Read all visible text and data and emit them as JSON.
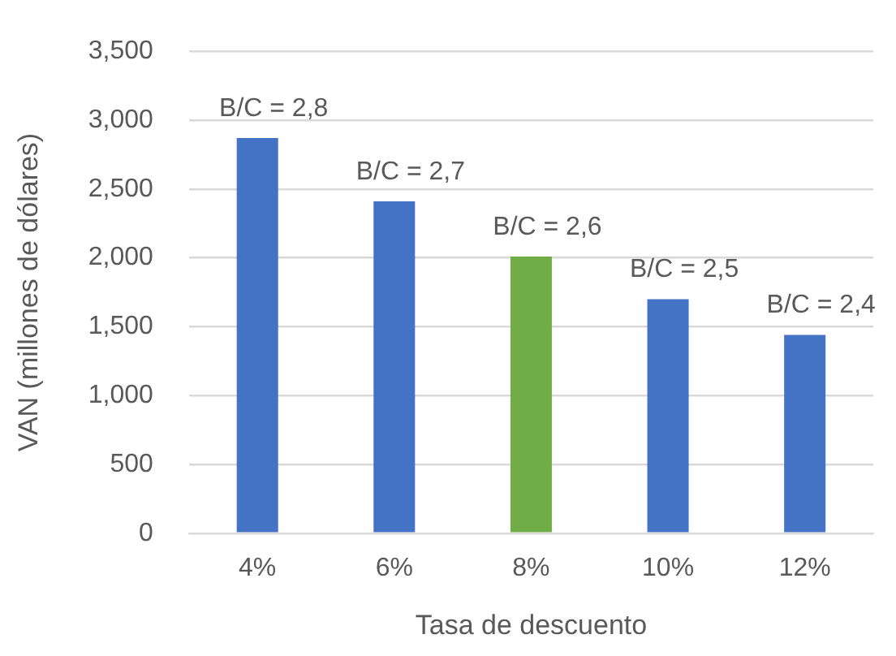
{
  "chart_data": {
    "type": "bar",
    "categories": [
      "4%",
      "6%",
      "8%",
      "10%",
      "12%"
    ],
    "values": [
      2870,
      2410,
      2010,
      1700,
      1440
    ],
    "colors": [
      "#4472c4",
      "#4472c4",
      "#70ad47",
      "#4472c4",
      "#4472c4"
    ],
    "xlabel": "Tasa de descuento",
    "ylabel": "VAN (millones de dólares)",
    "ylim": [
      0,
      3500
    ],
    "yticks": [
      0,
      500,
      {
        "value": 1000,
        "label": "1,000"
      },
      {
        "value": 1500,
        "label": "1,500"
      },
      {
        "value": 2000,
        "label": "2,000"
      },
      {
        "value": 2500,
        "label": "2,500"
      },
      {
        "value": 3000,
        "label": "3,000"
      },
      {
        "value": 3500,
        "label": "3,500"
      }
    ],
    "grid": "y",
    "annotations": [
      {
        "text": "B/C = 2,8",
        "x": "4%",
        "y": 2870
      },
      {
        "text": "B/C = 2,7",
        "x": "6%",
        "y": 2410
      },
      {
        "text": "B/C = 2,6",
        "x": "8%",
        "y": 2010
      },
      {
        "text": "B/C = 2,5",
        "x": "10%",
        "y": 1700
      },
      {
        "text": "B/C = 2,4",
        "x": "12%",
        "y": 1440
      }
    ]
  }
}
